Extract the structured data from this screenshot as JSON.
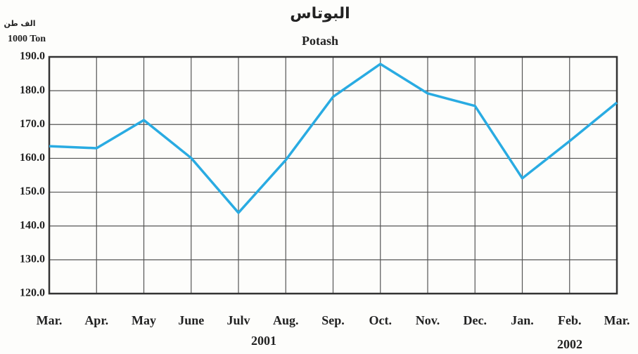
{
  "chart_data": {
    "type": "line",
    "title": "البوتاس",
    "subtitle": "Potash",
    "y_label_arabic": "الف طن",
    "y_label": "1000 Ton",
    "categories": [
      "Mar.",
      "Apr.",
      "May",
      "June",
      "Julv",
      "Aug.",
      "Sep.",
      "Oct.",
      "Nov.",
      "Dec.",
      "Jan.",
      "Feb.",
      "Mar."
    ],
    "year_labels": [
      "2001",
      "2002"
    ],
    "series": [
      {
        "name": "Potash",
        "color": "#29abe2",
        "values": [
          163.6,
          163.0,
          171.3,
          160.1,
          143.9,
          159.5,
          178.2,
          187.9,
          179.2,
          175.5,
          154.1,
          165.1,
          176.5
        ]
      }
    ],
    "ylim": [
      120,
      190
    ],
    "yticks": [
      {
        "value": 120,
        "label": "120.0"
      },
      {
        "value": 130,
        "label": "130.0"
      },
      {
        "value": 140,
        "label": "140.0"
      },
      {
        "value": 150,
        "label": "150.0"
      },
      {
        "value": 160,
        "label": "160.0"
      },
      {
        "value": 170,
        "label": "170.0"
      },
      {
        "value": 180,
        "label": "180.0"
      },
      {
        "value": 190,
        "label": "190.0"
      }
    ],
    "grid": true
  }
}
